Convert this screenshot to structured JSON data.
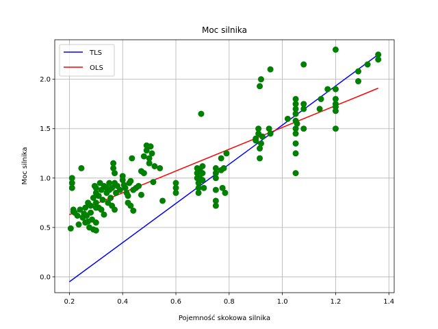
{
  "chart_data": {
    "type": "scatter",
    "title": "Moc silnika",
    "xlabel": "Pojemność skokowa silnika",
    "ylabel": "Moc silnika",
    "xlim": [
      0.145,
      1.42
    ],
    "ylim": [
      -0.16,
      2.4
    ],
    "xticks": [
      0.2,
      0.4,
      0.6,
      0.8,
      1.0,
      1.2,
      1.4
    ],
    "xtick_labels": [
      "0.2",
      "0.4",
      "0.6",
      "0.8",
      "1.0",
      "1.2",
      "1.4"
    ],
    "yticks": [
      0.0,
      0.5,
      1.0,
      1.5,
      2.0
    ],
    "ytick_labels": [
      "0.0",
      "0.5",
      "1.0",
      "1.5",
      "2.0"
    ],
    "grid": true,
    "legend": {
      "position": "top-left",
      "entries": [
        "TLS",
        "OLS"
      ]
    },
    "points_color": "#008000",
    "points": [
      [
        0.205,
        0.49
      ],
      [
        0.21,
        1.0
      ],
      [
        0.21,
        0.95
      ],
      [
        0.21,
        0.9
      ],
      [
        0.215,
        0.66
      ],
      [
        0.215,
        0.68
      ],
      [
        0.22,
        0.65
      ],
      [
        0.23,
        0.62
      ],
      [
        0.235,
        0.53
      ],
      [
        0.24,
        0.68
      ],
      [
        0.245,
        1.1
      ],
      [
        0.25,
        0.6
      ],
      [
        0.255,
        0.64
      ],
      [
        0.26,
        0.55
      ],
      [
        0.26,
        0.7
      ],
      [
        0.265,
        0.62
      ],
      [
        0.27,
        0.75
      ],
      [
        0.27,
        0.56
      ],
      [
        0.275,
        0.5
      ],
      [
        0.28,
        0.72
      ],
      [
        0.28,
        0.65
      ],
      [
        0.285,
        0.58
      ],
      [
        0.29,
        0.48
      ],
      [
        0.29,
        0.8
      ],
      [
        0.295,
        0.92
      ],
      [
        0.3,
        0.9
      ],
      [
        0.3,
        0.85
      ],
      [
        0.3,
        0.75
      ],
      [
        0.3,
        0.7
      ],
      [
        0.3,
        0.55
      ],
      [
        0.3,
        0.47
      ],
      [
        0.31,
        0.82
      ],
      [
        0.31,
        0.7
      ],
      [
        0.315,
        0.95
      ],
      [
        0.32,
        0.88
      ],
      [
        0.32,
        0.68
      ],
      [
        0.325,
        0.78
      ],
      [
        0.33,
        0.92
      ],
      [
        0.33,
        0.63
      ],
      [
        0.34,
        0.9
      ],
      [
        0.34,
        0.85
      ],
      [
        0.345,
        0.75
      ],
      [
        0.35,
        0.95
      ],
      [
        0.35,
        0.88
      ],
      [
        0.355,
        0.8
      ],
      [
        0.36,
        0.9
      ],
      [
        0.36,
        0.72
      ],
      [
        0.365,
        1.15
      ],
      [
        0.365,
        1.1
      ],
      [
        0.37,
        1.05
      ],
      [
        0.37,
        0.95
      ],
      [
        0.37,
        0.68
      ],
      [
        0.375,
        0.85
      ],
      [
        0.38,
        0.92
      ],
      [
        0.39,
        0.88
      ],
      [
        0.4,
        1.02
      ],
      [
        0.4,
        0.98
      ],
      [
        0.405,
        0.93
      ],
      [
        0.41,
        0.9
      ],
      [
        0.415,
        0.85
      ],
      [
        0.42,
        0.82
      ],
      [
        0.42,
        0.75
      ],
      [
        0.425,
        0.95
      ],
      [
        0.43,
        0.97
      ],
      [
        0.43,
        0.72
      ],
      [
        0.435,
        1.2
      ],
      [
        0.44,
        0.67
      ],
      [
        0.44,
        0.88
      ],
      [
        0.45,
        0.9
      ],
      [
        0.46,
        0.92
      ],
      [
        0.47,
        0.83
      ],
      [
        0.47,
        1.07
      ],
      [
        0.48,
        1.22
      ],
      [
        0.48,
        1.05
      ],
      [
        0.49,
        1.33
      ],
      [
        0.49,
        1.28
      ],
      [
        0.5,
        1.2
      ],
      [
        0.5,
        1.15
      ],
      [
        0.505,
        1.32
      ],
      [
        0.51,
        1.25
      ],
      [
        0.515,
        0.96
      ],
      [
        0.52,
        1.12
      ],
      [
        0.54,
        1.1
      ],
      [
        0.55,
        0.77
      ],
      [
        0.6,
        0.95
      ],
      [
        0.6,
        0.9
      ],
      [
        0.6,
        0.85
      ],
      [
        0.68,
        1.1
      ],
      [
        0.68,
        1.05
      ],
      [
        0.68,
        1.0
      ],
      [
        0.685,
        0.95
      ],
      [
        0.685,
        0.9
      ],
      [
        0.685,
        0.85
      ],
      [
        0.69,
        1.08
      ],
      [
        0.69,
        1.0
      ],
      [
        0.695,
        1.65
      ],
      [
        0.7,
        1.12
      ],
      [
        0.7,
        1.05
      ],
      [
        0.7,
        0.98
      ],
      [
        0.705,
        0.9
      ],
      [
        0.75,
        1.1
      ],
      [
        0.75,
        1.05
      ],
      [
        0.75,
        1.0
      ],
      [
        0.75,
        0.88
      ],
      [
        0.75,
        0.77
      ],
      [
        0.75,
        0.72
      ],
      [
        0.77,
        1.2
      ],
      [
        0.77,
        1.08
      ],
      [
        0.775,
        0.9
      ],
      [
        0.78,
        1.1
      ],
      [
        0.785,
        0.85
      ],
      [
        0.79,
        1.25
      ],
      [
        0.9,
        1.38
      ],
      [
        0.9,
        1.4
      ],
      [
        0.91,
        1.45
      ],
      [
        0.91,
        1.5
      ],
      [
        0.915,
        1.3
      ],
      [
        0.915,
        1.2
      ],
      [
        0.915,
        1.93
      ],
      [
        0.92,
        2.0
      ],
      [
        0.92,
        1.35
      ],
      [
        0.925,
        1.42
      ],
      [
        0.95,
        1.5
      ],
      [
        0.955,
        2.1
      ],
      [
        0.955,
        1.45
      ],
      [
        1.02,
        1.6
      ],
      [
        1.05,
        1.8
      ],
      [
        1.05,
        1.75
      ],
      [
        1.05,
        1.7
      ],
      [
        1.05,
        1.65
      ],
      [
        1.05,
        1.58
      ],
      [
        1.05,
        1.5
      ],
      [
        1.05,
        1.45
      ],
      [
        1.05,
        1.35
      ],
      [
        1.05,
        1.25
      ],
      [
        1.05,
        1.05
      ],
      [
        1.055,
        1.55
      ],
      [
        1.08,
        2.15
      ],
      [
        1.08,
        1.75
      ],
      [
        1.08,
        1.7
      ],
      [
        1.08,
        1.5
      ],
      [
        1.14,
        1.7
      ],
      [
        1.145,
        1.8
      ],
      [
        1.17,
        1.9
      ],
      [
        1.2,
        2.3
      ],
      [
        1.2,
        1.9
      ],
      [
        1.2,
        1.8
      ],
      [
        1.2,
        1.75
      ],
      [
        1.2,
        1.72
      ],
      [
        1.2,
        1.68
      ],
      [
        1.2,
        1.5
      ],
      [
        1.285,
        2.08
      ],
      [
        1.285,
        1.98
      ],
      [
        1.32,
        2.15
      ],
      [
        1.36,
        2.25
      ],
      [
        1.36,
        2.2
      ]
    ],
    "lines": [
      {
        "name": "TLS",
        "color": "#0000ff",
        "x": [
          0.2,
          1.36
        ],
        "y": [
          -0.05,
          2.25
        ]
      },
      {
        "name": "OLS",
        "color": "#ff0000",
        "x": [
          0.2,
          1.36
        ],
        "y": [
          0.63,
          1.91
        ]
      }
    ]
  }
}
